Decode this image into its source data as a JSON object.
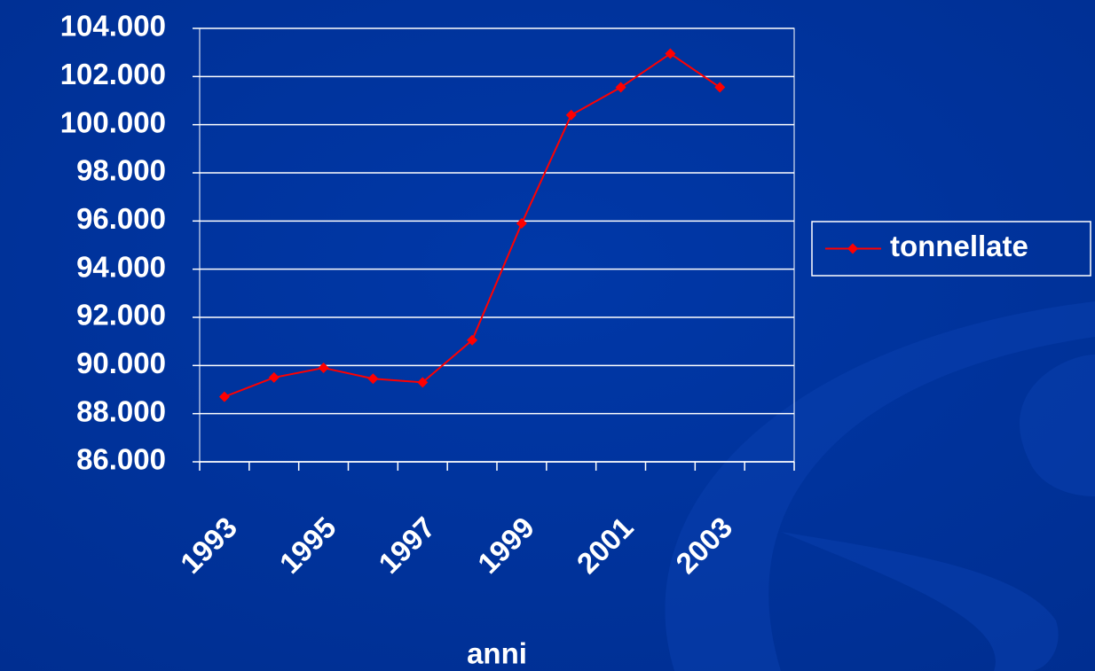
{
  "chart_data": {
    "type": "line",
    "x_label": "anni",
    "categories": [
      "1993",
      null,
      "1995",
      null,
      "1997",
      null,
      "1999",
      null,
      "2001",
      null,
      "2003",
      null
    ],
    "series": [
      {
        "name": "tonnellate",
        "color": "#ff0000",
        "values": [
          88700,
          89500,
          89900,
          89450,
          89300,
          91050,
          95900,
          100400,
          101550,
          102950,
          101550,
          null
        ]
      }
    ],
    "ylim": [
      86000,
      104000
    ],
    "yticks": [
      {
        "value": 86000,
        "label": "86.000"
      },
      {
        "value": 88000,
        "label": "88.000"
      },
      {
        "value": 90000,
        "label": "90.000"
      },
      {
        "value": 92000,
        "label": "92.000"
      },
      {
        "value": 94000,
        "label": "94.000"
      },
      {
        "value": 96000,
        "label": "96.000"
      },
      {
        "value": 98000,
        "label": "98.000"
      },
      {
        "value": 100000,
        "label": "100.000"
      },
      {
        "value": 102000,
        "label": "102.000"
      },
      {
        "value": 104000,
        "label": "104.000"
      }
    ],
    "grid": true,
    "legend": "right"
  }
}
